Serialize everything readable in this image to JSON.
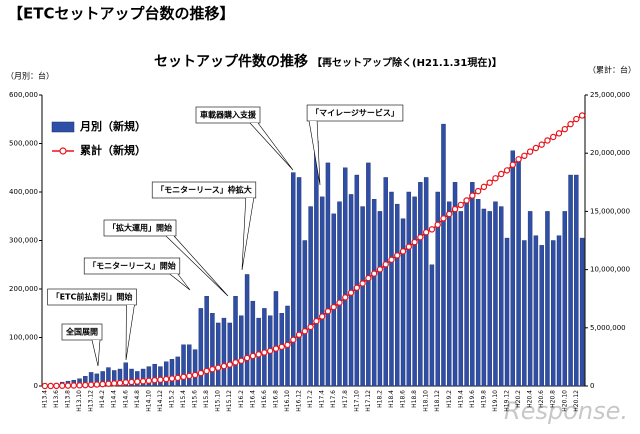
{
  "chart_data": {
    "type": "bar_line",
    "header": "【ETCセットアップ台数の推移】",
    "title": "セットアップ件数の推移",
    "subtitle": "【再セットアップ除く(H21.1.31現在)】",
    "y_label": "（月別：台）",
    "y2_label": "（累計：台）",
    "categories": [
      "H13.4",
      null,
      "H13.6",
      null,
      "H13.8",
      null,
      "H13.10",
      null,
      "H13.12",
      null,
      "H14.2",
      null,
      "H14.4",
      null,
      "H14.6",
      null,
      "H14.8",
      null,
      "H14.10",
      null,
      "H14.12",
      null,
      "H15.2",
      null,
      "H15.4",
      null,
      "H15.6",
      null,
      "H15.8",
      null,
      "H15.10",
      null,
      "H15.12",
      null,
      "H16.2",
      null,
      "H16.4",
      null,
      "H16.6",
      null,
      "H16.8",
      null,
      "H16.10",
      null,
      "H16.12",
      null,
      "H17.2",
      null,
      "H17.4",
      null,
      "H17.6",
      null,
      "H17.8",
      null,
      "H17.10",
      null,
      "H17.12",
      null,
      "H18.2",
      null,
      "H18.4",
      null,
      "H18.6",
      null,
      "H18.8",
      null,
      "H18.10",
      null,
      "H18.12",
      null,
      "H19.2",
      null,
      "H19.4",
      null,
      "H19.6",
      null,
      "H19.8",
      null,
      "H19.10",
      null,
      "H19.12",
      null,
      "H20.2",
      null,
      "H20.4",
      null,
      "H20.6",
      null,
      "H20.8",
      null,
      "H20.10",
      null,
      "H20.12",
      null
    ],
    "series": [
      {
        "name": "月別（新規）",
        "color": "#2f4fa6",
        "kind": "bar",
        "values": [
          2000,
          3000,
          5000,
          8000,
          10000,
          12000,
          15000,
          20000,
          28000,
          25000,
          30000,
          38000,
          32000,
          35000,
          48000,
          35000,
          30000,
          35000,
          40000,
          45000,
          40000,
          50000,
          55000,
          60000,
          85000,
          85000,
          75000,
          160000,
          185000,
          150000,
          130000,
          140000,
          130000,
          185000,
          145000,
          230000,
          175000,
          140000,
          160000,
          145000,
          195000,
          150000,
          165000,
          440000,
          430000,
          300000,
          370000,
          505000,
          390000,
          460000,
          355000,
          380000,
          450000,
          395000,
          435000,
          370000,
          460000,
          385000,
          360000,
          430000,
          400000,
          375000,
          345000,
          400000,
          390000,
          420000,
          430000,
          250000,
          400000,
          540000,
          380000,
          420000,
          360000,
          380000,
          420000,
          385000,
          365000,
          360000,
          380000,
          370000,
          305000,
          485000,
          470000,
          300000,
          360000,
          310000,
          290000,
          360000,
          300000,
          310000,
          360000,
          435000,
          435000,
          305000
        ]
      },
      {
        "name": "累計（新規）",
        "color": "#e8141b",
        "kind": "line",
        "axis": "y2",
        "values": [
          2000,
          5000,
          10000,
          18000,
          28000,
          40000,
          55000,
          75000,
          103000,
          128000,
          158000,
          196000,
          228000,
          263000,
          311000,
          346000,
          376000,
          411000,
          451000,
          496000,
          536000,
          586000,
          641000,
          701000,
          786000,
          871000,
          946000,
          1106000,
          1291000,
          1441000,
          1571000,
          1711000,
          1841000,
          2026000,
          2171000,
          2401000,
          2576000,
          2716000,
          2876000,
          3021000,
          3216000,
          3366000,
          3531000,
          3971000,
          4401000,
          4701000,
          5071000,
          5576000,
          5966000,
          6426000,
          6781000,
          7161000,
          7611000,
          8006000,
          8441000,
          8811000,
          9271000,
          9656000,
          10016000,
          10446000,
          10846000,
          11221000,
          11566000,
          11966000,
          12356000,
          12776000,
          13206000,
          13456000,
          13856000,
          14396000,
          14776000,
          15196000,
          15556000,
          15936000,
          16356000,
          16741000,
          17106000,
          17466000,
          17846000,
          18216000,
          18521000,
          19006000,
          19476000,
          19776000,
          20136000,
          20446000,
          20736000,
          21096000,
          21396000,
          21706000,
          22066000,
          22501000,
          22936000,
          23241000
        ]
      }
    ],
    "ylim": [
      0,
      600000
    ],
    "yticks": [
      0,
      {
        "value": 100000,
        "label": "100,000"
      },
      {
        "value": 200000,
        "label": "200,000"
      },
      {
        "value": 300000,
        "label": "300,000"
      },
      {
        "value": 400000,
        "label": "400,000"
      },
      {
        "value": 500000,
        "label": "500,000"
      },
      {
        "value": 600000,
        "label": "600,000"
      }
    ],
    "y2lim": [
      0,
      25000000
    ],
    "y2ticks": [
      0,
      {
        "value": 5000000,
        "label": "5,000,000"
      },
      {
        "value": 10000000,
        "label": "10,000,000"
      },
      {
        "value": 15000000,
        "label": "15,000,000"
      },
      {
        "value": 20000000,
        "label": "20,000,000"
      },
      {
        "value": 25000000,
        "label": "25,000,000"
      }
    ],
    "legend": "upper left",
    "annotations": [
      "全国展開",
      "「ETC前払割引」開始",
      "「モニターリース」開始",
      "「拡大運用」開始",
      "「モニターリース」枠拡大",
      "車載器購入支援",
      "「マイレージサービス」"
    ],
    "watermark": "Response."
  }
}
